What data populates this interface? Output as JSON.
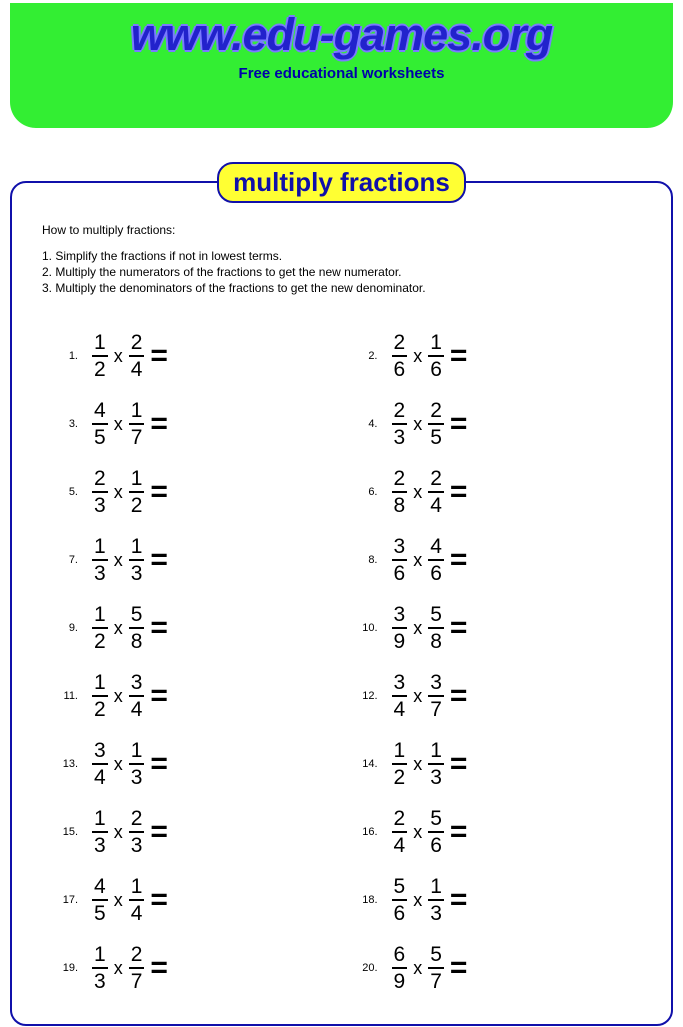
{
  "header": {
    "site_title": "www.edu-games.org",
    "subtitle": "Free educational worksheets",
    "bg_color": "#33ee33",
    "title_color": "#2222cc"
  },
  "badge": {
    "label": "multiply fractions",
    "bg_color": "#ffff33",
    "border_color": "#1010aa",
    "text_color": "#1010aa"
  },
  "intro": {
    "heading": "How to multiply fractions:",
    "steps": [
      "1. Simplify the fractions if not in lowest terms.",
      "2. Multiply the numerators of the fractions to get the new numerator.",
      "3. Multiply the denominators of the fractions to get the new denominator."
    ]
  },
  "problems": [
    {
      "n": "1.",
      "a_num": "1",
      "a_den": "2",
      "b_num": "2",
      "b_den": "4"
    },
    {
      "n": "2.",
      "a_num": "2",
      "a_den": "6",
      "b_num": "1",
      "b_den": "6"
    },
    {
      "n": "3.",
      "a_num": "4",
      "a_den": "5",
      "b_num": "1",
      "b_den": "7"
    },
    {
      "n": "4.",
      "a_num": "2",
      "a_den": "3",
      "b_num": "2",
      "b_den": "5"
    },
    {
      "n": "5.",
      "a_num": "2",
      "a_den": "3",
      "b_num": "1",
      "b_den": "2"
    },
    {
      "n": "6.",
      "a_num": "2",
      "a_den": "8",
      "b_num": "2",
      "b_den": "4"
    },
    {
      "n": "7.",
      "a_num": "1",
      "a_den": "3",
      "b_num": "1",
      "b_den": "3"
    },
    {
      "n": "8.",
      "a_num": "3",
      "a_den": "6",
      "b_num": "4",
      "b_den": "6"
    },
    {
      "n": "9.",
      "a_num": "1",
      "a_den": "2",
      "b_num": "5",
      "b_den": "8"
    },
    {
      "n": "10.",
      "a_num": "3",
      "a_den": "9",
      "b_num": "5",
      "b_den": "8"
    },
    {
      "n": "11.",
      "a_num": "1",
      "a_den": "2",
      "b_num": "3",
      "b_den": "4"
    },
    {
      "n": "12.",
      "a_num": "3",
      "a_den": "4",
      "b_num": "3",
      "b_den": "7"
    },
    {
      "n": "13.",
      "a_num": "3",
      "a_den": "4",
      "b_num": "1",
      "b_den": "3"
    },
    {
      "n": "14.",
      "a_num": "1",
      "a_den": "2",
      "b_num": "1",
      "b_den": "3"
    },
    {
      "n": "15.",
      "a_num": "1",
      "a_den": "3",
      "b_num": "2",
      "b_den": "3"
    },
    {
      "n": "16.",
      "a_num": "2",
      "a_den": "4",
      "b_num": "5",
      "b_den": "6"
    },
    {
      "n": "17.",
      "a_num": "4",
      "a_den": "5",
      "b_num": "1",
      "b_den": "4"
    },
    {
      "n": "18.",
      "a_num": "5",
      "a_den": "6",
      "b_num": "1",
      "b_den": "3"
    },
    {
      "n": "19.",
      "a_num": "1",
      "a_den": "3",
      "b_num": "2",
      "b_den": "7"
    },
    {
      "n": "20.",
      "a_num": "6",
      "a_den": "9",
      "b_num": "5",
      "b_den": "7"
    }
  ],
  "symbols": {
    "times": "x",
    "equals": "="
  },
  "styling": {
    "panel_border_color": "#1010aa",
    "frac_fontsize": 21,
    "pnum_fontsize": 11,
    "intro_fontsize": 12,
    "background": "#ffffff"
  }
}
